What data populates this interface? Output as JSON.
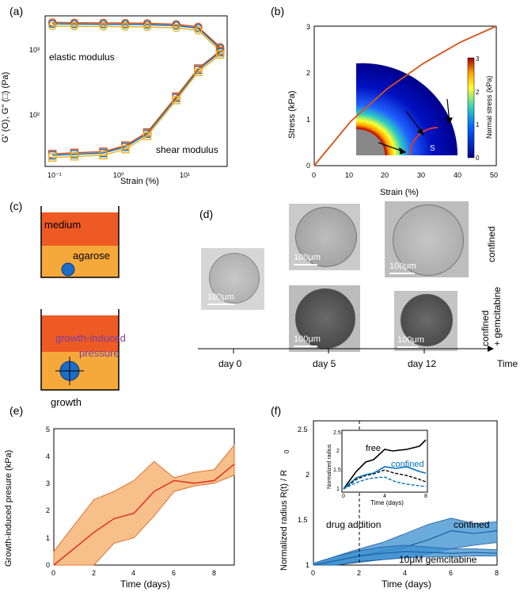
{
  "panel_labels": {
    "a": "(a)",
    "b": "(b)",
    "c": "(c)",
    "d": "(d)",
    "e": "(e)",
    "f": "(f)"
  },
  "panel_a": {
    "ylabel": "G' (O), G'' (□) (Pa)",
    "xlabel": "Strain (%)",
    "annot_elastic": "elastic modulus",
    "annot_shear": "shear modulus",
    "xticks": [
      "10⁻¹",
      "10⁰",
      "10¹"
    ],
    "yticks": [
      "10²",
      "10³"
    ]
  },
  "panel_b": {
    "xlabel": "Strain (%)",
    "ylabel": "Stress (kPa)",
    "xticks": [
      "0",
      "10",
      "20",
      "30",
      "40",
      "50"
    ],
    "yticks": [
      "0",
      "1",
      "2",
      "3"
    ],
    "colorbar_label": "Normal stress (kPa)",
    "colorbar_ticks": [
      "0",
      "1",
      "2",
      "3"
    ],
    "inset_S": "S"
  },
  "panel_c": {
    "medium": "medium",
    "agarose": "agarose",
    "pressure1": "growth-induced",
    "pressure2": "pressure",
    "growth": "growth"
  },
  "panel_d": {
    "scale": "100μm",
    "row1": "confined",
    "row2a": "confined",
    "row2b": "+ gemcitabine",
    "days": [
      "day 0",
      "day 5",
      "day 12"
    ],
    "time": "Time"
  },
  "panel_e": {
    "ylabel": "Growth-induced presure (kPa)",
    "xlabel": "Time (days)",
    "xticks": [
      "0",
      "2",
      "4",
      "6",
      "8"
    ],
    "yticks": [
      "0",
      "1",
      "2",
      "3",
      "4",
      "5"
    ]
  },
  "panel_f": {
    "ylabel": "Normalized radius R(t) / R",
    "ylabel_sub": "0",
    "xlabel": "Time (days)",
    "xticks": [
      "0",
      "2",
      "4",
      "6",
      "8"
    ],
    "yticks": [
      "1",
      "1.5",
      "2",
      "2.5"
    ],
    "annot_confined": "confined",
    "annot_drug": "drug addition",
    "annot_gem": "10μM gemcitabine",
    "inset_ylabel": "Normalized radius",
    "inset_xlabel": "Time (days)",
    "inset_free": "free",
    "inset_confined": "confined",
    "inset_xticks": [
      "0",
      "4",
      "8"
    ],
    "inset_yticks": [
      "1",
      "1.5",
      "2",
      "2.5"
    ]
  },
  "colors": {
    "blue": "#0072BD",
    "orange": "#D95319",
    "yellow": "#EDB120",
    "red": "#e03020",
    "fill_orange": "#f7c08a",
    "fill_blue": "#3a8fd0",
    "medium": "#ee5a24",
    "agarose": "#f6a93b"
  },
  "chart_data": [
    {
      "type": "line",
      "panel": "a",
      "xscale": "log",
      "yscale": "log",
      "x": [
        0.1,
        0.2,
        0.5,
        1,
        2,
        5,
        10,
        20
      ],
      "series": [
        {
          "name": "elastic modulus",
          "values": [
            1200,
            1190,
            1185,
            1180,
            1170,
            1140,
            1060,
            600
          ]
        },
        {
          "name": "shear modulus",
          "values": [
            30,
            31,
            32,
            38,
            55,
            150,
            330,
            540
          ]
        }
      ]
    },
    {
      "type": "line",
      "panel": "b",
      "x": [
        0,
        10,
        20,
        30,
        40,
        50
      ],
      "values": [
        0,
        0.95,
        1.65,
        2.2,
        2.65,
        3.0
      ],
      "xlim": [
        0,
        50
      ],
      "ylim": [
        0,
        3
      ]
    },
    {
      "type": "area",
      "panel": "e",
      "x": [
        0,
        2,
        3,
        4,
        5,
        6,
        7,
        8,
        9
      ],
      "mean": [
        0,
        1.2,
        1.7,
        1.9,
        2.7,
        3.1,
        3.0,
        3.1,
        3.7
      ],
      "upper": [
        0.5,
        2.4,
        2.7,
        3.1,
        3.8,
        3.2,
        3.4,
        3.5,
        4.4
      ],
      "lower": [
        0,
        0,
        0.8,
        1.0,
        1.8,
        2.7,
        2.9,
        3.0,
        3.3
      ],
      "xlim": [
        0,
        9
      ],
      "ylim": [
        0,
        5
      ]
    },
    {
      "type": "area",
      "panel": "f",
      "x": [
        0,
        1,
        2,
        3,
        4,
        5,
        6,
        7,
        8
      ],
      "series": [
        {
          "name": "confined",
          "mean": [
            1,
            1.05,
            1.1,
            1.15,
            1.2,
            1.28,
            1.38,
            1.35,
            1.38
          ],
          "upper": [
            1.02,
            1.1,
            1.18,
            1.25,
            1.35,
            1.45,
            1.52,
            1.46,
            1.48
          ],
          "lower": [
            1,
            1.0,
            1.03,
            1.06,
            1.08,
            1.12,
            1.18,
            1.22,
            1.25
          ]
        },
        {
          "name": "10μM gemcitabine",
          "mean": [
            1,
            1.05,
            1.1,
            1.13,
            1.15,
            1.14,
            1.13,
            1.14,
            1.13
          ],
          "upper": [
            1.02,
            1.1,
            1.16,
            1.2,
            1.22,
            1.2,
            1.18,
            1.18,
            1.17
          ],
          "lower": [
            1,
            1.0,
            1.04,
            1.06,
            1.08,
            1.09,
            1.09,
            1.1,
            1.1
          ]
        }
      ],
      "xlim": [
        0,
        8
      ],
      "ylim": [
        1,
        2.6
      ]
    }
  ]
}
